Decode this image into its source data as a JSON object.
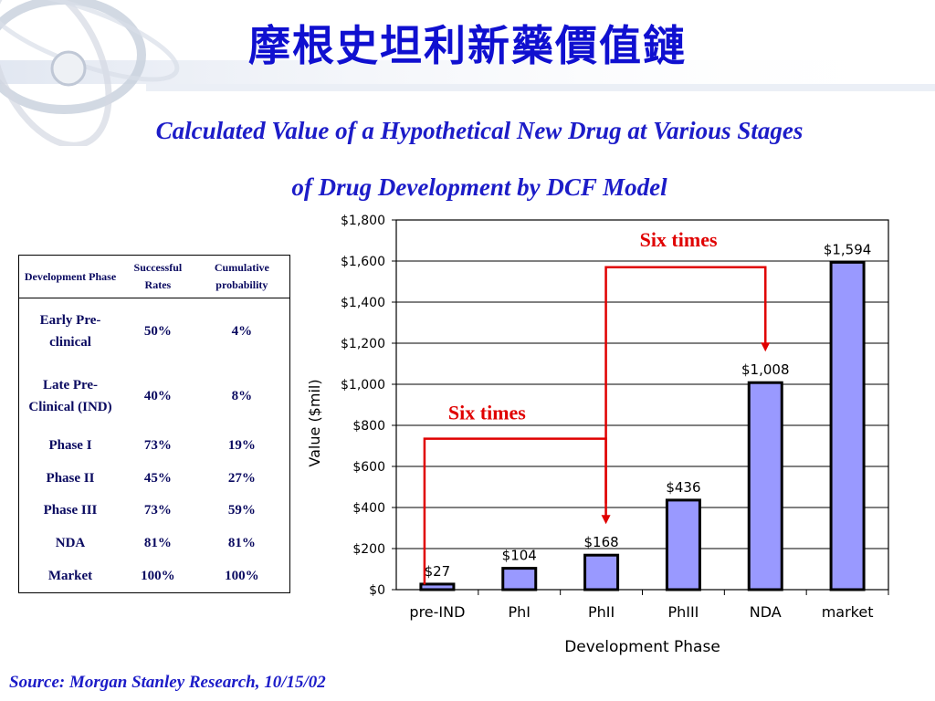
{
  "title": "摩根史坦利新藥價值鏈",
  "subtitle_line1": "Calculated Value of a Hypothetical New Drug at  Various Stages",
  "subtitle_line2": "of Drug Development by DCF  Model",
  "table": {
    "headers": [
      "Development Phase",
      "Successful Rates",
      "Cumulative probability"
    ],
    "rows": [
      {
        "phase": "Early Pre-clinical",
        "rate": "50%",
        "cumulative": "4%"
      },
      {
        "phase": "Late Pre-Clinical (IND)",
        "rate": "40%",
        "cumulative": "8%"
      },
      {
        "phase": "Phase I",
        "rate": "73%",
        "cumulative": "19%"
      },
      {
        "phase": "Phase II",
        "rate": "45%",
        "cumulative": "27%"
      },
      {
        "phase": "Phase III",
        "rate": "73%",
        "cumulative": "59%"
      },
      {
        "phase": "NDA",
        "rate": "81%",
        "cumulative": "81%"
      },
      {
        "phase": "Market",
        "rate": "100%",
        "cumulative": "100%"
      }
    ]
  },
  "chart_data": {
    "type": "bar",
    "categories": [
      "pre-IND",
      "PhI",
      "PhII",
      "PhIII",
      "NDA",
      "market"
    ],
    "values": [
      27,
      104,
      168,
      436,
      1008,
      1594
    ],
    "value_labels": [
      "$27",
      "$104",
      "$168",
      "$436",
      "$1,008",
      "$1,594"
    ],
    "xlabel": "Development Phase",
    "ylabel": "Value ($mil)",
    "ylim": [
      0,
      1800
    ],
    "yticks": [
      0,
      200,
      400,
      600,
      800,
      1000,
      1200,
      1400,
      1600,
      1800
    ],
    "ytick_labels": [
      "$0",
      "$200",
      "$400",
      "$600",
      "$800",
      "$1,000",
      "$1,200",
      "$1,400",
      "$1,600",
      "$1,800"
    ],
    "grid": true,
    "bar_color": "#9999ff",
    "annotations": [
      {
        "text": "Six times",
        "from": "pre-IND",
        "to": "PhII"
      },
      {
        "text": "Six times",
        "from": "PhII",
        "to": "NDA"
      }
    ],
    "annotation_color": "#e00000"
  },
  "source": "Source: Morgan Stanley Research, 10/15/02"
}
